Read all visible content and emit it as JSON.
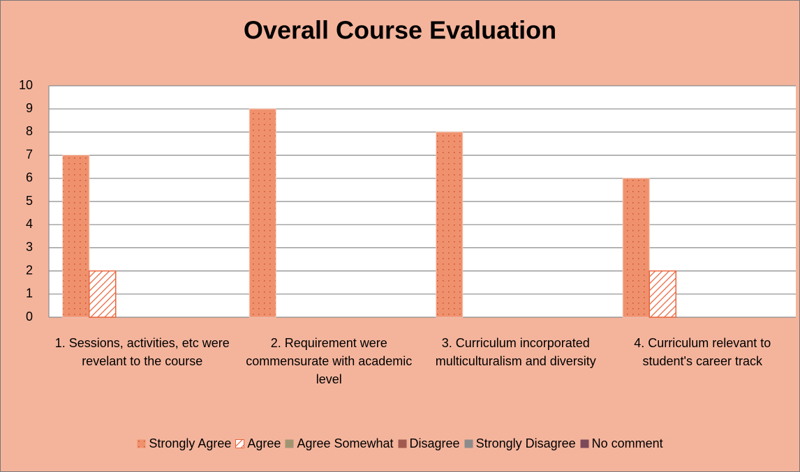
{
  "chart_data": {
    "type": "bar",
    "title": "Overall Course Evaluation",
    "categories": [
      "1. Sessions, activities, etc were revelant to the course",
      "2. Requirement were commensurate with academic level",
      "3. Curriculum incorporated multiculturalism and diversity",
      "4. Curriculum relevant to student's career track"
    ],
    "series": [
      {
        "name": "Strongly Agree",
        "color": "#f0916e",
        "pattern": "dots",
        "values": [
          7,
          9,
          8,
          6
        ]
      },
      {
        "name": "Agree",
        "color": "#e8643c",
        "pattern": "hatch",
        "values": [
          2,
          0,
          0,
          2
        ]
      },
      {
        "name": "Agree Somewhat",
        "color": "#a09572",
        "values": [
          0,
          0,
          0,
          0
        ]
      },
      {
        "name": "Disagree",
        "color": "#a05a4e",
        "values": [
          0,
          0,
          0,
          0
        ]
      },
      {
        "name": "Strongly Disagree",
        "color": "#8c8c8c",
        "values": [
          0,
          0,
          0,
          0
        ]
      },
      {
        "name": "No comment",
        "color": "#7a4a5a",
        "values": [
          0,
          0,
          0,
          0
        ]
      }
    ],
    "ylim": [
      0,
      10
    ],
    "yticks": [
      0,
      1,
      2,
      3,
      4,
      5,
      6,
      7,
      8,
      9,
      10
    ],
    "grid": true,
    "legend": "bottom"
  }
}
